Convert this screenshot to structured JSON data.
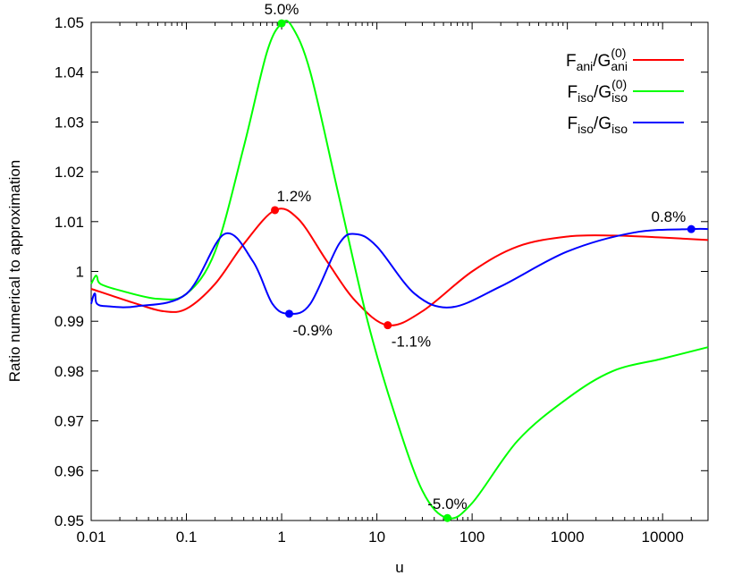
{
  "chart_data": {
    "type": "line",
    "title": "",
    "xlabel": "u",
    "ylabel": "Ratio numerical to approximation",
    "x_scale": "log",
    "xlim": [
      0.01,
      30000
    ],
    "ylim": [
      0.95,
      1.05
    ],
    "grid": false,
    "legend_position": "top-right",
    "x_ticks": [
      "0.01",
      "0.1",
      "1",
      "10",
      "100",
      "1000",
      "10000"
    ],
    "y_ticks": [
      "0.95",
      "0.96",
      "0.97",
      "0.98",
      "0.99",
      "1",
      "1.01",
      "1.02",
      "1.03",
      "1.04",
      "1.05"
    ],
    "series": [
      {
        "name": "F_ani/G_ani^(0)",
        "legend_main": "F",
        "legend_sub1": "ani",
        "legend_mid": "/G",
        "legend_sup2": "(0)",
        "legend_sub2": "ani",
        "color": "#ff0000",
        "points": [
          [
            0.01,
            0.9965
          ],
          [
            0.03,
            0.9935
          ],
          [
            0.058,
            0.992
          ],
          [
            0.1,
            0.9925
          ],
          [
            0.2,
            0.9975
          ],
          [
            0.4,
            1.0055
          ],
          [
            0.85,
            1.0123
          ],
          [
            1.5,
            1.0105
          ],
          [
            3,
            1.002
          ],
          [
            6,
            0.994
          ],
          [
            13,
            0.9892
          ],
          [
            30,
            0.992
          ],
          [
            100,
            1.0
          ],
          [
            300,
            1.005
          ],
          [
            1000,
            1.007
          ],
          [
            3000,
            1.0072
          ],
          [
            10000,
            1.0068
          ],
          [
            30000,
            1.0063
          ]
        ]
      },
      {
        "name": "F_iso/G_iso^(0)",
        "legend_main": "F",
        "legend_sub1": "iso",
        "legend_mid": "/G",
        "legend_sup2": "(0)",
        "legend_sub2": "iso",
        "color": "#00ff00",
        "points": [
          [
            0.01,
            0.9975
          ],
          [
            0.011,
            0.999
          ],
          [
            0.0115,
            0.999
          ],
          [
            0.0125,
            0.9975
          ],
          [
            0.02,
            0.9962
          ],
          [
            0.05,
            0.9945
          ],
          [
            0.1,
            0.9955
          ],
          [
            0.2,
            1.004
          ],
          [
            0.4,
            1.025
          ],
          [
            0.7,
            1.044
          ],
          [
            1.0,
            1.0498
          ],
          [
            1.3,
            1.049
          ],
          [
            2,
            1.04
          ],
          [
            4,
            1.015
          ],
          [
            8,
            0.99
          ],
          [
            15,
            0.972
          ],
          [
            30,
            0.956
          ],
          [
            55,
            0.9505
          ],
          [
            100,
            0.9535
          ],
          [
            300,
            0.966
          ],
          [
            1000,
            0.9745
          ],
          [
            3000,
            0.98
          ],
          [
            10000,
            0.9825
          ],
          [
            30000,
            0.9848
          ]
        ]
      },
      {
        "name": "F_iso/G_iso",
        "legend_main": "F",
        "legend_sub1": "iso",
        "legend_mid": "/G",
        "legend_sup2": "",
        "legend_sub2": "iso",
        "color": "#0000ff",
        "points": [
          [
            0.01,
            0.9935
          ],
          [
            0.0105,
            0.995
          ],
          [
            0.011,
            0.9955
          ],
          [
            0.0115,
            0.9935
          ],
          [
            0.015,
            0.993
          ],
          [
            0.03,
            0.993
          ],
          [
            0.1,
            0.9955
          ],
          [
            0.25,
            1.0075
          ],
          [
            0.5,
            1.002
          ],
          [
            0.8,
            0.9935
          ],
          [
            1.2,
            0.9915
          ],
          [
            2,
            0.9935
          ],
          [
            4,
            1.0055
          ],
          [
            6,
            1.0075
          ],
          [
            10,
            1.005
          ],
          [
            25,
            0.9955
          ],
          [
            60,
            0.9928
          ],
          [
            200,
            0.997
          ],
          [
            1000,
            1.004
          ],
          [
            5000,
            1.0078
          ],
          [
            20000,
            1.0085
          ],
          [
            30000,
            1.0085
          ]
        ]
      }
    ],
    "annotations": [
      {
        "text": "5.0%",
        "x": 1.0,
        "y": 1.0498,
        "color": "#00ff00",
        "pos": "above"
      },
      {
        "text": "1.2%",
        "x": 0.85,
        "y": 1.0123,
        "color": "#ff0000",
        "pos": "above-right"
      },
      {
        "text": "-0.9%",
        "x": 1.2,
        "y": 0.9915,
        "color": "#0000ff",
        "pos": "below-right"
      },
      {
        "text": "-1.1%",
        "x": 13,
        "y": 0.9892,
        "color": "#ff0000",
        "pos": "below-right"
      },
      {
        "text": "-5.0%",
        "x": 55,
        "y": 0.9505,
        "color": "#00ff00",
        "pos": "above"
      },
      {
        "text": "0.8%",
        "x": 20000,
        "y": 1.0085,
        "color": "#0000ff",
        "pos": "above-left"
      }
    ]
  }
}
